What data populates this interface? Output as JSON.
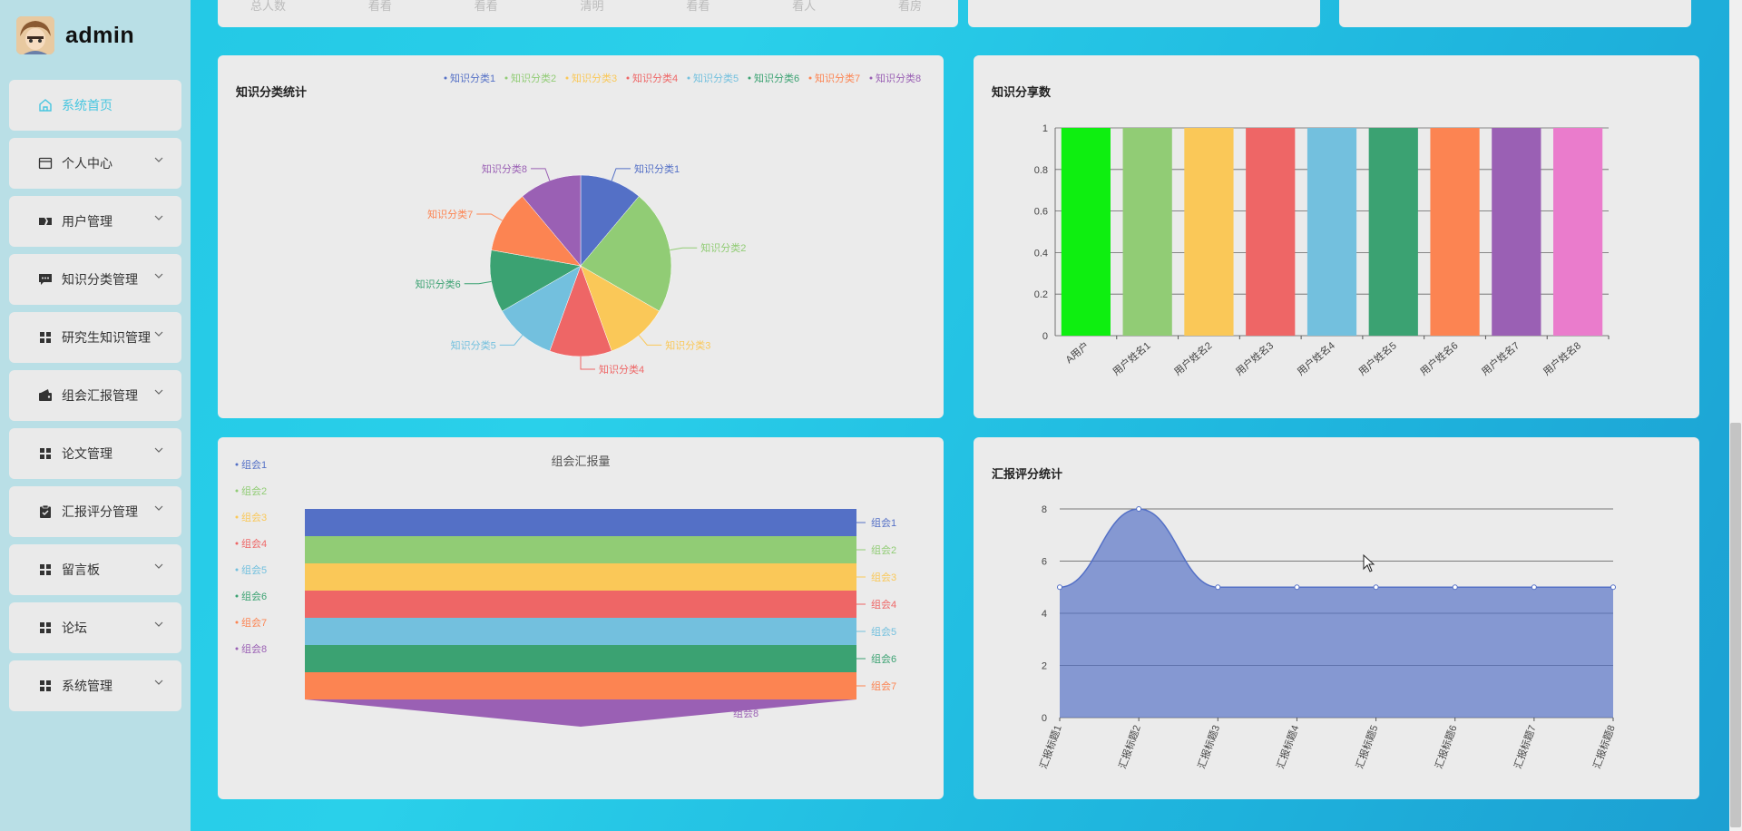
{
  "user": {
    "name": "admin"
  },
  "sidebar": {
    "items": [
      {
        "label": "系统首页",
        "icon": "home-icon"
      },
      {
        "label": "个人中心",
        "icon": "profile-icon"
      },
      {
        "label": "用户管理",
        "icon": "user-icon"
      },
      {
        "label": "知识分类管理",
        "icon": "message-icon"
      },
      {
        "label": "研究生知识管理",
        "icon": "grid-icon"
      },
      {
        "label": "组会汇报管理",
        "icon": "wallet-icon"
      },
      {
        "label": "论文管理",
        "icon": "grid-icon"
      },
      {
        "label": "汇报评分管理",
        "icon": "clipboard-icon"
      },
      {
        "label": "留言板",
        "icon": "grid-icon"
      },
      {
        "label": "论坛",
        "icon": "grid-icon"
      },
      {
        "label": "系统管理",
        "icon": "grid-icon"
      }
    ]
  },
  "top_strip": {
    "labels": [
      "总人数",
      "看看",
      "看看",
      "清明",
      "看看",
      "看人",
      "看房"
    ]
  },
  "colors": [
    "#5470c6",
    "#91cc75",
    "#fac858",
    "#ee6666",
    "#73c0de",
    "#3ba272",
    "#fc8452",
    "#9a60b4",
    "#ea7ccc"
  ],
  "chart_data": [
    {
      "id": "pie",
      "type": "pie",
      "title": "知识分类统计",
      "labels": [
        "知识分类1",
        "知识分类2",
        "知识分类3",
        "知识分类4",
        "知识分类5",
        "知识分类6",
        "知识分类7",
        "知识分类8"
      ],
      "values": [
        1,
        2,
        1,
        1,
        1,
        1,
        1,
        1
      ]
    },
    {
      "id": "bar",
      "type": "bar",
      "title": "知识分享数",
      "categories": [
        "A用户",
        "用户姓名1",
        "用户姓名2",
        "用户姓名3",
        "用户姓名4",
        "用户姓名5",
        "用户姓名6",
        "用户姓名7",
        "用户姓名8"
      ],
      "values": [
        1,
        1,
        1,
        1,
        1,
        1,
        1,
        1,
        1
      ],
      "bar_colors": [
        "#0eef10",
        "#91cc75",
        "#fac858",
        "#ee6666",
        "#73c0de",
        "#3ba272",
        "#fc8452",
        "#9a60b4",
        "#ea7ccc"
      ],
      "ylim": [
        0,
        1
      ],
      "yticks": [
        "0",
        "0.2",
        "0.4",
        "0.6",
        "0.8",
        "1"
      ]
    },
    {
      "id": "funnel",
      "type": "funnel",
      "title": "组会汇报量",
      "labels": [
        "组会1",
        "组会2",
        "组会3",
        "组会4",
        "组会5",
        "组会6",
        "组会7",
        "组会8"
      ],
      "values": [
        1,
        1,
        1,
        1,
        1,
        1,
        1,
        0
      ]
    },
    {
      "id": "area",
      "type": "area",
      "title": "汇报评分统计",
      "categories": [
        "汇报标题1",
        "汇报标题2",
        "汇报标题3",
        "汇报标题4",
        "汇报标题5",
        "汇报标题6",
        "汇报标题7",
        "汇报标题8"
      ],
      "values": [
        5,
        8,
        5,
        5,
        5,
        5,
        5,
        5
      ],
      "ylim": [
        0,
        8
      ],
      "yticks": [
        "0",
        "2",
        "4",
        "6",
        "8"
      ]
    }
  ]
}
